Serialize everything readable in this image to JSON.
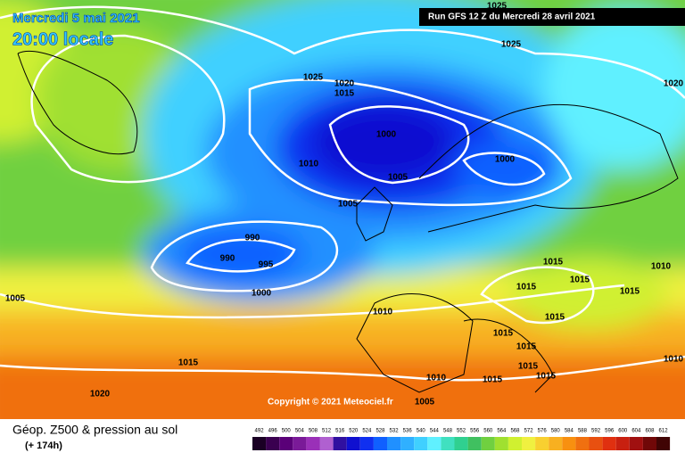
{
  "header": {
    "date": "Mercredi 5 mai 2021",
    "time": "20:00 locale",
    "run": "Run GFS 12 Z du Mercredi 28 avril 2021"
  },
  "copyright": "Copyright © 2021 Meteociel.fr",
  "legend": {
    "title": "Géop. Z500 & pression au sol",
    "lead": "(+ 174h)"
  },
  "isobars": [
    1025,
    1025,
    1025,
    1020,
    1015,
    1020,
    1000,
    1000,
    1010,
    1005,
    1005,
    990,
    990,
    995,
    1000,
    1005,
    1010,
    1015,
    1015,
    1015,
    1015,
    1010,
    1015,
    1015,
    1015,
    1015,
    1015,
    1010,
    1015,
    1010,
    1020,
    1005,
    1015
  ],
  "scale": {
    "values": [
      492,
      496,
      500,
      504,
      508,
      512,
      516,
      520,
      524,
      528,
      532,
      536,
      540,
      544,
      548,
      552,
      556,
      560,
      564,
      568,
      572,
      576,
      580,
      584,
      588,
      592,
      596,
      600,
      604,
      608,
      612
    ],
    "colors": [
      "#1a0024",
      "#3a0050",
      "#5a0078",
      "#7a1a98",
      "#9a30b8",
      "#b060d0",
      "#3010a0",
      "#1010d0",
      "#1030f0",
      "#1060ff",
      "#2090ff",
      "#30b0ff",
      "#40d0ff",
      "#60f0ff",
      "#40e0c0",
      "#30d090",
      "#40c060",
      "#70d040",
      "#a0e030",
      "#d0f030",
      "#f0f040",
      "#f8d030",
      "#f8b020",
      "#f89010",
      "#f07010",
      "#e85010",
      "#e03010",
      "#c82010",
      "#a01010",
      "#700808",
      "#400404"
    ]
  }
}
